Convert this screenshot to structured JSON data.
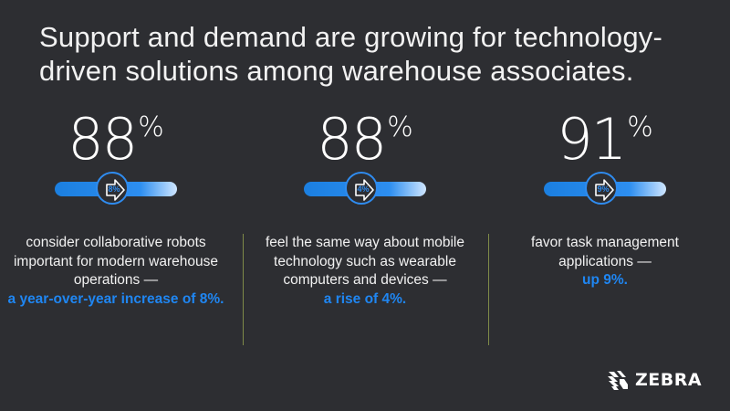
{
  "headline": "Support and demand are growing for technology-driven solutions among warehouse associates.",
  "stats": [
    {
      "value": "88",
      "unit": "%",
      "knob": "8%",
      "text": "consider collaborative robots important for modern warehouse operations —",
      "highlight": "a year-over-year increase of 8%."
    },
    {
      "value": "88",
      "unit": "%",
      "knob": "4%",
      "text": "feel the same way about mobile technology such as wearable computers and devices —",
      "highlight": "a rise of 4%."
    },
    {
      "value": "91",
      "unit": "%",
      "knob": "9%",
      "text": "favor task management applications —",
      "highlight": "up 9%."
    }
  ],
  "logo": {
    "text": "ZEBRA",
    "icon": "zebra-head-icon"
  },
  "colors": {
    "background": "#2d2e32",
    "accent": "#1f86f2",
    "divider": "#7f8a48"
  }
}
